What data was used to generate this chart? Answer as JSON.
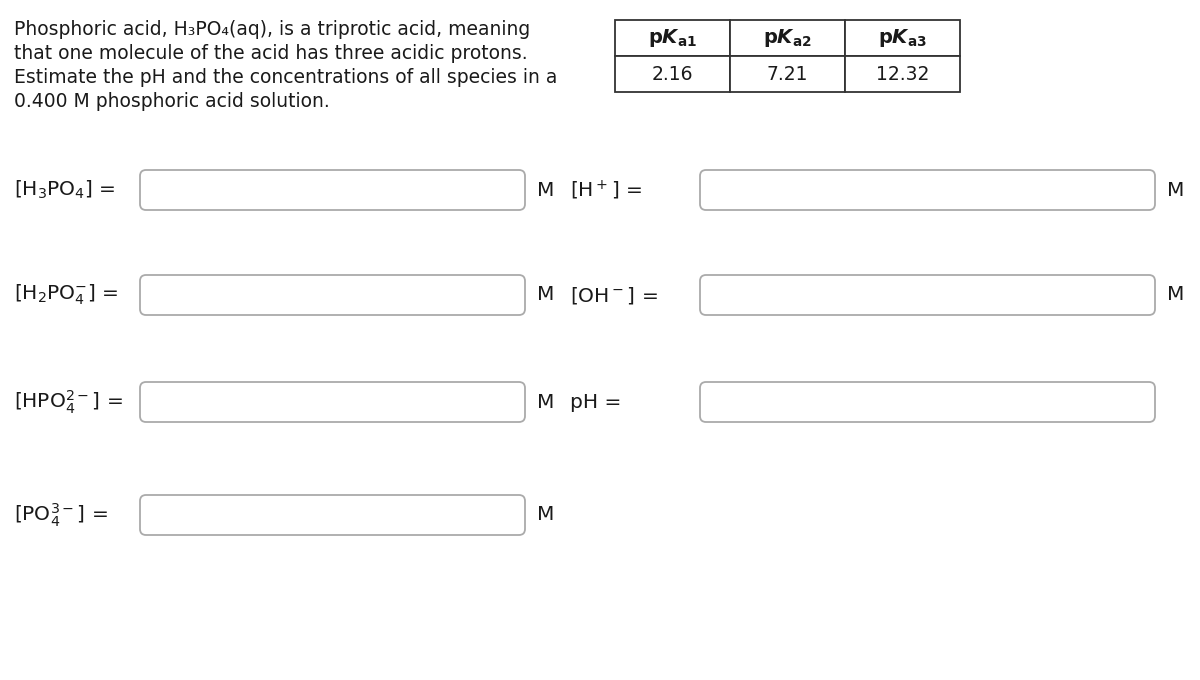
{
  "bg_color": "#ffffff",
  "text_color": "#1a1a1a",
  "intro_lines": [
    "Phosphoric acid, H₃PO₄(aq), is a triprotic acid, meaning",
    "that one molecule of the acid has three acidic protons.",
    "Estimate the pH and the concentrations of all species in a",
    "0.400 M phosphoric acid solution."
  ],
  "table_values": [
    "2.16",
    "7.21",
    "12.32"
  ],
  "unit_M": "M",
  "box_edge_color": "#aaaaaa",
  "box_face_color": "#ffffff",
  "table_edge_color": "#333333",
  "font_size_intro": 13.5,
  "font_size_label": 14.5,
  "font_size_table_hdr": 14,
  "font_size_table_val": 13.5,
  "font_size_unit": 14.5
}
